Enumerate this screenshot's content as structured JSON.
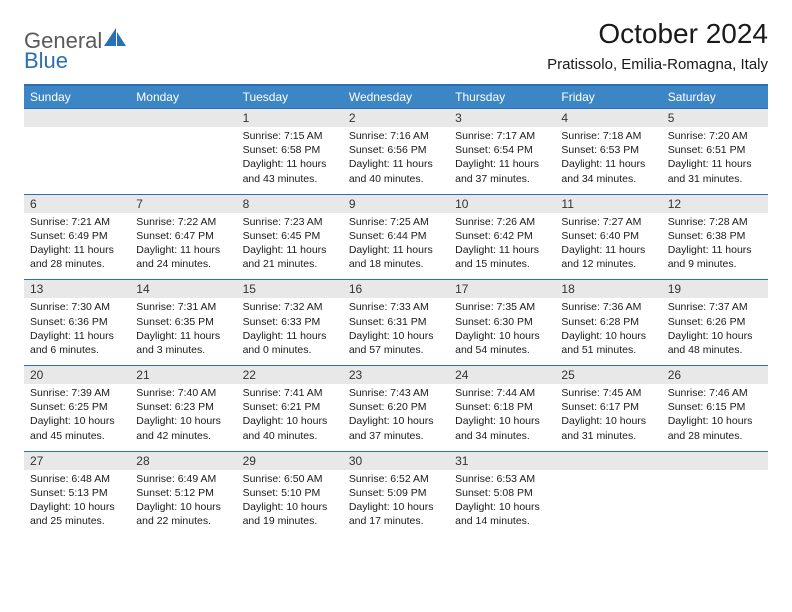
{
  "brand": {
    "name_part1": "General",
    "name_part2": "Blue",
    "text_color": "#5a5a5a",
    "accent_color": "#2a6fb5"
  },
  "title": "October 2024",
  "location": "Pratissolo, Emilia-Romagna, Italy",
  "colors": {
    "header_bg": "#3d86c6",
    "header_text": "#ffffff",
    "row_border": "#2a6fb5",
    "daynum_bg": "#e8e8e8",
    "body_text": "#1a1a1a"
  },
  "day_names": [
    "Sunday",
    "Monday",
    "Tuesday",
    "Wednesday",
    "Thursday",
    "Friday",
    "Saturday"
  ],
  "weeks": [
    [
      {
        "n": "",
        "sr": "",
        "ss": "",
        "dl": ""
      },
      {
        "n": "",
        "sr": "",
        "ss": "",
        "dl": ""
      },
      {
        "n": "1",
        "sr": "Sunrise: 7:15 AM",
        "ss": "Sunset: 6:58 PM",
        "dl": "Daylight: 11 hours and 43 minutes."
      },
      {
        "n": "2",
        "sr": "Sunrise: 7:16 AM",
        "ss": "Sunset: 6:56 PM",
        "dl": "Daylight: 11 hours and 40 minutes."
      },
      {
        "n": "3",
        "sr": "Sunrise: 7:17 AM",
        "ss": "Sunset: 6:54 PM",
        "dl": "Daylight: 11 hours and 37 minutes."
      },
      {
        "n": "4",
        "sr": "Sunrise: 7:18 AM",
        "ss": "Sunset: 6:53 PM",
        "dl": "Daylight: 11 hours and 34 minutes."
      },
      {
        "n": "5",
        "sr": "Sunrise: 7:20 AM",
        "ss": "Sunset: 6:51 PM",
        "dl": "Daylight: 11 hours and 31 minutes."
      }
    ],
    [
      {
        "n": "6",
        "sr": "Sunrise: 7:21 AM",
        "ss": "Sunset: 6:49 PM",
        "dl": "Daylight: 11 hours and 28 minutes."
      },
      {
        "n": "7",
        "sr": "Sunrise: 7:22 AM",
        "ss": "Sunset: 6:47 PM",
        "dl": "Daylight: 11 hours and 24 minutes."
      },
      {
        "n": "8",
        "sr": "Sunrise: 7:23 AM",
        "ss": "Sunset: 6:45 PM",
        "dl": "Daylight: 11 hours and 21 minutes."
      },
      {
        "n": "9",
        "sr": "Sunrise: 7:25 AM",
        "ss": "Sunset: 6:44 PM",
        "dl": "Daylight: 11 hours and 18 minutes."
      },
      {
        "n": "10",
        "sr": "Sunrise: 7:26 AM",
        "ss": "Sunset: 6:42 PM",
        "dl": "Daylight: 11 hours and 15 minutes."
      },
      {
        "n": "11",
        "sr": "Sunrise: 7:27 AM",
        "ss": "Sunset: 6:40 PM",
        "dl": "Daylight: 11 hours and 12 minutes."
      },
      {
        "n": "12",
        "sr": "Sunrise: 7:28 AM",
        "ss": "Sunset: 6:38 PM",
        "dl": "Daylight: 11 hours and 9 minutes."
      }
    ],
    [
      {
        "n": "13",
        "sr": "Sunrise: 7:30 AM",
        "ss": "Sunset: 6:36 PM",
        "dl": "Daylight: 11 hours and 6 minutes."
      },
      {
        "n": "14",
        "sr": "Sunrise: 7:31 AM",
        "ss": "Sunset: 6:35 PM",
        "dl": "Daylight: 11 hours and 3 minutes."
      },
      {
        "n": "15",
        "sr": "Sunrise: 7:32 AM",
        "ss": "Sunset: 6:33 PM",
        "dl": "Daylight: 11 hours and 0 minutes."
      },
      {
        "n": "16",
        "sr": "Sunrise: 7:33 AM",
        "ss": "Sunset: 6:31 PM",
        "dl": "Daylight: 10 hours and 57 minutes."
      },
      {
        "n": "17",
        "sr": "Sunrise: 7:35 AM",
        "ss": "Sunset: 6:30 PM",
        "dl": "Daylight: 10 hours and 54 minutes."
      },
      {
        "n": "18",
        "sr": "Sunrise: 7:36 AM",
        "ss": "Sunset: 6:28 PM",
        "dl": "Daylight: 10 hours and 51 minutes."
      },
      {
        "n": "19",
        "sr": "Sunrise: 7:37 AM",
        "ss": "Sunset: 6:26 PM",
        "dl": "Daylight: 10 hours and 48 minutes."
      }
    ],
    [
      {
        "n": "20",
        "sr": "Sunrise: 7:39 AM",
        "ss": "Sunset: 6:25 PM",
        "dl": "Daylight: 10 hours and 45 minutes."
      },
      {
        "n": "21",
        "sr": "Sunrise: 7:40 AM",
        "ss": "Sunset: 6:23 PM",
        "dl": "Daylight: 10 hours and 42 minutes."
      },
      {
        "n": "22",
        "sr": "Sunrise: 7:41 AM",
        "ss": "Sunset: 6:21 PM",
        "dl": "Daylight: 10 hours and 40 minutes."
      },
      {
        "n": "23",
        "sr": "Sunrise: 7:43 AM",
        "ss": "Sunset: 6:20 PM",
        "dl": "Daylight: 10 hours and 37 minutes."
      },
      {
        "n": "24",
        "sr": "Sunrise: 7:44 AM",
        "ss": "Sunset: 6:18 PM",
        "dl": "Daylight: 10 hours and 34 minutes."
      },
      {
        "n": "25",
        "sr": "Sunrise: 7:45 AM",
        "ss": "Sunset: 6:17 PM",
        "dl": "Daylight: 10 hours and 31 minutes."
      },
      {
        "n": "26",
        "sr": "Sunrise: 7:46 AM",
        "ss": "Sunset: 6:15 PM",
        "dl": "Daylight: 10 hours and 28 minutes."
      }
    ],
    [
      {
        "n": "27",
        "sr": "Sunrise: 6:48 AM",
        "ss": "Sunset: 5:13 PM",
        "dl": "Daylight: 10 hours and 25 minutes."
      },
      {
        "n": "28",
        "sr": "Sunrise: 6:49 AM",
        "ss": "Sunset: 5:12 PM",
        "dl": "Daylight: 10 hours and 22 minutes."
      },
      {
        "n": "29",
        "sr": "Sunrise: 6:50 AM",
        "ss": "Sunset: 5:10 PM",
        "dl": "Daylight: 10 hours and 19 minutes."
      },
      {
        "n": "30",
        "sr": "Sunrise: 6:52 AM",
        "ss": "Sunset: 5:09 PM",
        "dl": "Daylight: 10 hours and 17 minutes."
      },
      {
        "n": "31",
        "sr": "Sunrise: 6:53 AM",
        "ss": "Sunset: 5:08 PM",
        "dl": "Daylight: 10 hours and 14 minutes."
      },
      {
        "n": "",
        "sr": "",
        "ss": "",
        "dl": ""
      },
      {
        "n": "",
        "sr": "",
        "ss": "",
        "dl": ""
      }
    ]
  ]
}
